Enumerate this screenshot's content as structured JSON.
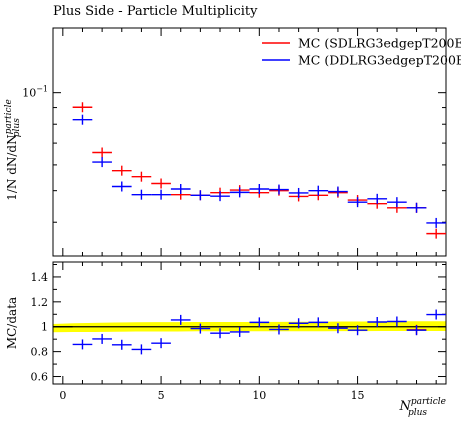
{
  "chart_data": {
    "type": "scatter",
    "title": "Plus Side - Particle Multiplicity",
    "main_panel": {
      "ylabel_parts": {
        "pre": "1/N",
        "mid": "dN/dN",
        "sup": "particle",
        "sub": "plus"
      },
      "y_scale": "log",
      "ylim": [
        0.0315,
        0.158
      ],
      "y_tick_labels": [
        {
          "value": 0.1,
          "label": "10",
          "exp": "−1"
        }
      ],
      "series": [
        {
          "name": "MC (SDLRG3edgepT200E",
          "color": "#ff0000",
          "x": [
            1,
            2,
            3,
            4,
            5,
            6,
            7,
            8,
            9,
            10,
            11,
            12,
            13,
            14,
            15,
            16,
            17,
            18,
            19
          ],
          "values": [
            0.0902,
            0.0655,
            0.0576,
            0.0552,
            0.0526,
            0.0486,
            0.0484,
            0.0493,
            0.0502,
            0.0493,
            0.05,
            0.048,
            0.0484,
            0.0493,
            0.0468,
            0.0456,
            0.0443,
            0.0443,
            0.0369
          ]
        },
        {
          "name": "MC (DDLRG3edgepT200E",
          "color": "#0000ff",
          "x": [
            1,
            2,
            3,
            4,
            5,
            6,
            7,
            8,
            9,
            10,
            11,
            12,
            13,
            14,
            15,
            16,
            17,
            18,
            19
          ],
          "values": [
            0.0826,
            0.0612,
            0.0515,
            0.0486,
            0.0486,
            0.0506,
            0.0484,
            0.0481,
            0.0494,
            0.0506,
            0.0504,
            0.0492,
            0.05,
            0.0497,
            0.0461,
            0.0472,
            0.0461,
            0.0443,
            0.0398
          ]
        }
      ]
    },
    "ratio_panel": {
      "ylabel": "MC/data",
      "ylim": [
        0.54,
        1.52
      ],
      "y_ticks": [
        0.6,
        0.8,
        1.0,
        1.2,
        1.4
      ],
      "y_tick_labels": [
        "0.6",
        "0.8",
        "1",
        "1.2",
        "1.4"
      ],
      "band": {
        "color": "#ffff00",
        "line_color": "#000000",
        "lower": [
          0.955,
          0.958,
          0.958,
          0.96,
          0.962,
          0.962,
          0.962,
          0.963,
          0.963,
          0.963,
          0.963,
          0.963,
          0.964,
          0.964,
          0.965,
          0.965,
          0.966,
          0.966,
          0.966,
          0.966
        ],
        "upper": [
          1.022,
          1.028,
          1.031,
          1.034,
          1.036,
          1.037,
          1.037,
          1.038,
          1.038,
          1.038,
          1.038,
          1.039,
          1.04,
          1.04,
          1.042,
          1.042,
          1.043,
          1.044,
          1.044,
          1.044
        ]
      },
      "series": [
        {
          "name": "MC (SDLRG3edgepT200E",
          "color": "#ff0000",
          "x": [
            1,
            2,
            3,
            4,
            5,
            6,
            7,
            8,
            9,
            10,
            11,
            12,
            13,
            14,
            15,
            16,
            17,
            18,
            19
          ],
          "values": [
            null,
            null,
            null,
            null,
            null,
            null,
            null,
            null,
            null,
            null,
            null,
            null,
            null,
            null,
            null,
            null,
            null,
            0.975,
            null
          ]
        },
        {
          "name": "MC (DDLRG3edgepT200E",
          "color": "#0000ff",
          "x": [
            1,
            2,
            3,
            4,
            5,
            6,
            7,
            8,
            9,
            10,
            11,
            12,
            13,
            14,
            15,
            16,
            17,
            18,
            19
          ],
          "values": [
            0.858,
            0.902,
            0.855,
            0.818,
            0.868,
            1.055,
            0.985,
            0.948,
            0.958,
            1.035,
            0.978,
            1.028,
            1.035,
            0.988,
            0.972,
            1.038,
            1.042,
            0.972,
            1.098
          ]
        }
      ]
    },
    "xlim": [
      -0.5,
      19.5
    ],
    "x_ticks": [
      0,
      5,
      10,
      15
    ],
    "x_tick_labels": [
      "0",
      "5",
      "10",
      "15"
    ],
    "xlabel_parts": {
      "main": "N",
      "sup": "particle",
      "sub": "plus"
    },
    "legend_position": "top-right",
    "grid": false
  }
}
